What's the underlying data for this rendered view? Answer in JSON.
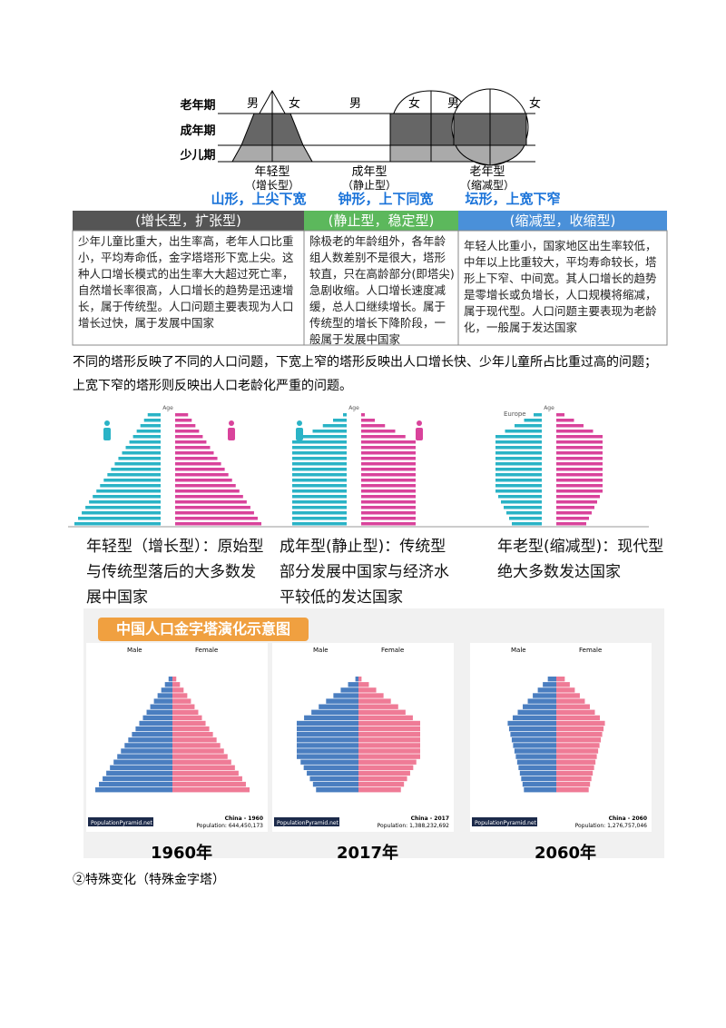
{
  "diagram": {
    "age_labels": [
      "老年期",
      "成年期",
      "少儿期"
    ],
    "pyramids": [
      {
        "male": "男",
        "female": "女",
        "name": "年轻型",
        "sub": "（增长型）",
        "shape": "山形，上尖下宽"
      },
      {
        "male": "男",
        "female": "女",
        "name": "成年型",
        "sub": "（静止型）",
        "shape": "钟形，上下同宽"
      },
      {
        "male": "男",
        "female": "女",
        "name": "老年型",
        "sub": "（缩减型）",
        "shape": "坛形，上宽下窄"
      }
    ]
  },
  "table": {
    "headers": [
      "(增长型，扩张型)",
      "(静止型，稳定型)",
      "(缩减型，收缩型)"
    ],
    "cells": [
      "少年儿童比重大，出生率高，老年人口比重小，平均寿命低，金字塔塔形下宽上尖。这种人口增长模式的出生率大大超过死亡率，自然增长率很高，人口增长的趋势是迅速增长，属于传统型。人口问题主要表现为人口增长过快，属于发展中国家",
      "除极老的年龄组外，各年龄组人数差别不是很大，塔形较直，只在高龄部分(即塔尖)急剧收缩。人口增长速度减缓，总人口继续增长。属于传统型的增长下降阶段，一般属于发展中国家",
      "年轻人比重小，国家地区出生率较低，中年以上比重较大，平均寿命较长，塔形上下窄、中间宽。其人口增长的趋势是零增长或负增长，人口规模将缩减，属于现代型。人口问题主要表现为老龄化，一般属于发达国家"
    ]
  },
  "paragraph": "不同的塔形反映了不同的人口问题，下宽上窄的塔形反映出人口增长快、少年儿童所占比重过高的问题；上宽下窄的塔形则反映出人口老龄化严重的问题。",
  "examples": {
    "age_label": "Age",
    "region": "Europe",
    "captions": [
      "年轻型（增长型）：原始型与传统型落后的大多数发展中国家",
      "成年型(静止型)：传统型部分发展中国家与经济水平较低的发达国家",
      "年老型(缩减型)：现代型绝大多数发达国家"
    ]
  },
  "china": {
    "title": "中国人口金字塔演化示意图",
    "panels": [
      {
        "male": "Male",
        "female": "Female",
        "source": "PopulationPyramid.net",
        "country": "China - 1960",
        "population": "Population: 644,450,173",
        "year": "1960年"
      },
      {
        "male": "Male",
        "female": "Female",
        "source": "PopulationPyramid.net",
        "country": "China - 2017",
        "population": "Population: 1,388,232,692",
        "year": "2017年"
      },
      {
        "male": "Male",
        "female": "Female",
        "source": "PopulationPyramid.net",
        "country": "China - 2060",
        "population": "Population: 1,276,757,046",
        "year": "2060年"
      }
    ]
  },
  "footer": "②特殊变化（特殊金字塔）"
}
